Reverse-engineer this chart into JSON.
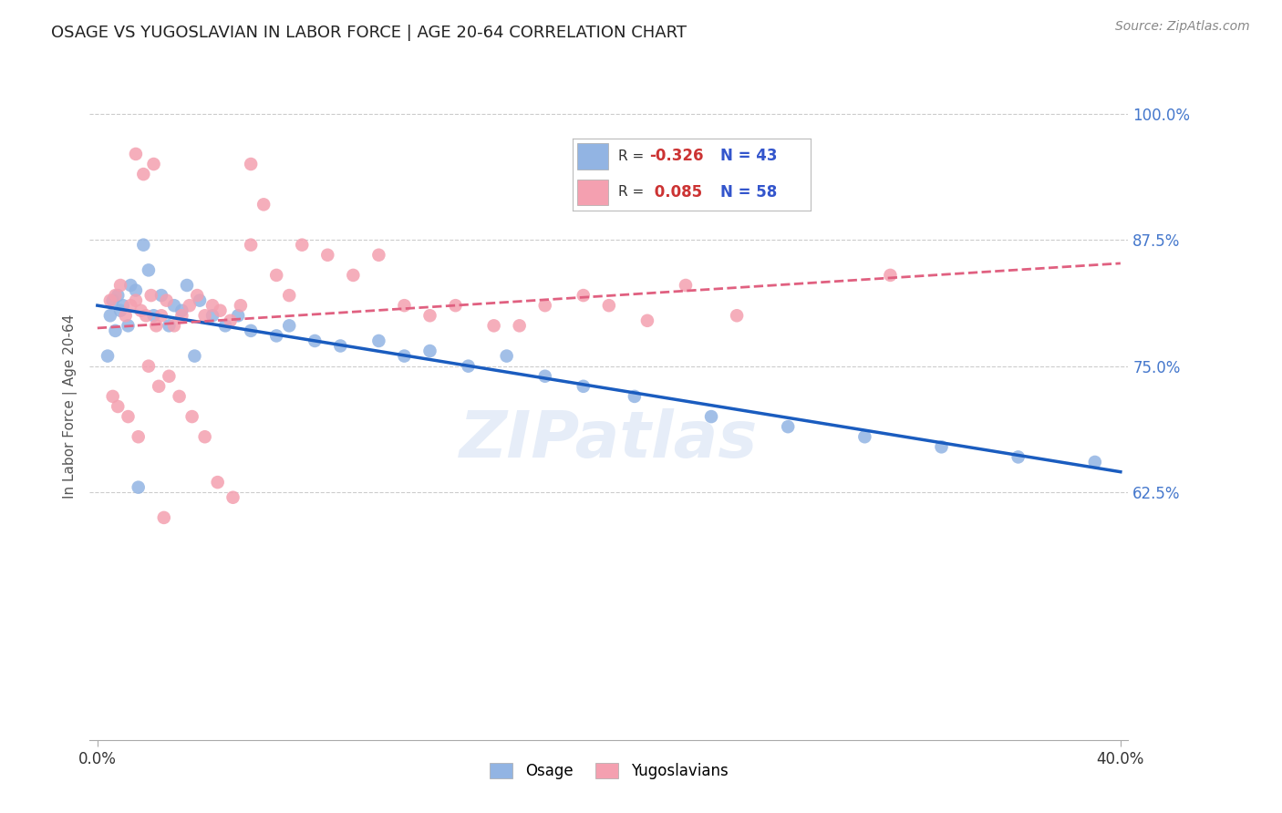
{
  "title": "OSAGE VS YUGOSLAVIAN IN LABOR FORCE | AGE 20-64 CORRELATION CHART",
  "source": "Source: ZipAtlas.com",
  "ylabel": "In Labor Force | Age 20-64",
  "xlim": [
    -0.003,
    0.403
  ],
  "ylim": [
    0.38,
    1.04
  ],
  "yticks": [
    0.625,
    0.75,
    0.875,
    1.0
  ],
  "ytick_labels": [
    "62.5%",
    "75.0%",
    "87.5%",
    "100.0%"
  ],
  "legend_r_osage": "-0.326",
  "legend_n_osage": "43",
  "legend_r_yugo": "0.085",
  "legend_n_yugo": "58",
  "osage_color": "#92b4e3",
  "yugo_color": "#f4a0b0",
  "osage_line_color": "#1a5cbf",
  "yugo_line_color": "#e06080",
  "watermark": "ZIPatlas",
  "background_color": "#ffffff",
  "grid_color": "#cccccc",
  "osage_x": [
    0.013,
    0.018,
    0.008,
    0.005,
    0.01,
    0.006,
    0.009,
    0.012,
    0.007,
    0.015,
    0.02,
    0.025,
    0.03,
    0.035,
    0.022,
    0.028,
    0.033,
    0.04,
    0.045,
    0.05,
    0.055,
    0.06,
    0.07,
    0.075,
    0.085,
    0.095,
    0.11,
    0.12,
    0.13,
    0.145,
    0.16,
    0.175,
    0.19,
    0.21,
    0.24,
    0.27,
    0.3,
    0.33,
    0.36,
    0.39,
    0.016,
    0.004,
    0.038
  ],
  "osage_y": [
    0.83,
    0.87,
    0.82,
    0.8,
    0.81,
    0.815,
    0.805,
    0.79,
    0.785,
    0.825,
    0.845,
    0.82,
    0.81,
    0.83,
    0.8,
    0.79,
    0.805,
    0.815,
    0.8,
    0.79,
    0.8,
    0.785,
    0.78,
    0.79,
    0.775,
    0.77,
    0.775,
    0.76,
    0.765,
    0.75,
    0.76,
    0.74,
    0.73,
    0.72,
    0.7,
    0.69,
    0.68,
    0.67,
    0.66,
    0.655,
    0.63,
    0.76,
    0.76
  ],
  "yugo_x": [
    0.005,
    0.007,
    0.009,
    0.011,
    0.013,
    0.015,
    0.017,
    0.019,
    0.021,
    0.023,
    0.025,
    0.027,
    0.03,
    0.033,
    0.036,
    0.039,
    0.042,
    0.045,
    0.048,
    0.052,
    0.056,
    0.06,
    0.065,
    0.07,
    0.075,
    0.08,
    0.09,
    0.1,
    0.11,
    0.12,
    0.13,
    0.14,
    0.155,
    0.165,
    0.175,
    0.19,
    0.2,
    0.215,
    0.23,
    0.25,
    0.006,
    0.008,
    0.012,
    0.016,
    0.02,
    0.024,
    0.028,
    0.032,
    0.037,
    0.042,
    0.047,
    0.053,
    0.31,
    0.015,
    0.018,
    0.022,
    0.026,
    0.06
  ],
  "yugo_y": [
    0.815,
    0.82,
    0.83,
    0.8,
    0.81,
    0.815,
    0.805,
    0.8,
    0.82,
    0.79,
    0.8,
    0.815,
    0.79,
    0.8,
    0.81,
    0.82,
    0.8,
    0.81,
    0.805,
    0.795,
    0.81,
    0.87,
    0.91,
    0.84,
    0.82,
    0.87,
    0.86,
    0.84,
    0.86,
    0.81,
    0.8,
    0.81,
    0.79,
    0.79,
    0.81,
    0.82,
    0.81,
    0.795,
    0.83,
    0.8,
    0.72,
    0.71,
    0.7,
    0.68,
    0.75,
    0.73,
    0.74,
    0.72,
    0.7,
    0.68,
    0.635,
    0.62,
    0.84,
    0.96,
    0.94,
    0.95,
    0.6,
    0.95
  ]
}
